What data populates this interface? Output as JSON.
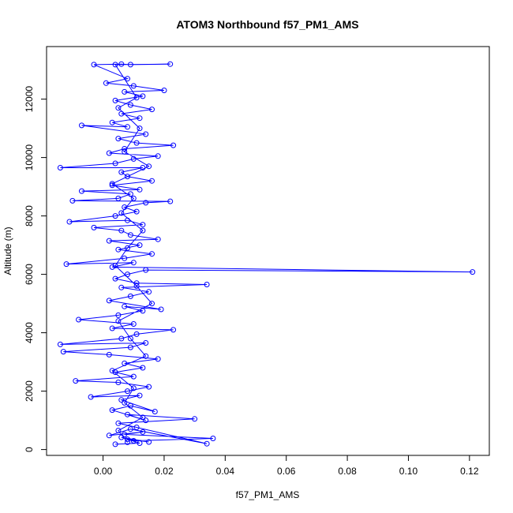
{
  "chart_data": {
    "type": "line",
    "title": "ATOM3 Northbound f57_PM1_AMS",
    "xlabel": "f57_PM1_AMS",
    "ylabel": "Altitude (m)",
    "xlim": [
      -0.0185,
      0.1265
    ],
    "ylim": [
      -200,
      13800
    ],
    "xticks": [
      0.0,
      0.02,
      0.04,
      0.06,
      0.08,
      0.1,
      0.12
    ],
    "xtick_labels": [
      "0.00",
      "0.02",
      "0.04",
      "0.06",
      "0.08",
      "0.10",
      "0.12"
    ],
    "yticks": [
      0,
      2000,
      4000,
      6000,
      8000,
      10000,
      12000
    ],
    "ytick_labels": [
      "0",
      "2000",
      "4000",
      "6000",
      "8000",
      "10000",
      "12000"
    ],
    "series_color": "#0000ff",
    "grid": false,
    "legend": "none",
    "series": [
      {
        "points": [
          [
            0.004,
            180
          ],
          [
            0.012,
            220
          ],
          [
            0.008,
            350
          ],
          [
            0.015,
            260
          ],
          [
            0.006,
            420
          ],
          [
            0.01,
            300
          ],
          [
            0.036,
            380
          ],
          [
            0.007,
            520
          ],
          [
            0.013,
            600
          ],
          [
            0.002,
            480
          ],
          [
            0.009,
            700
          ],
          [
            0.034,
            200
          ],
          [
            0.011,
            760
          ],
          [
            0.005,
            900
          ],
          [
            0.03,
            1050
          ],
          [
            0.008,
            1200
          ],
          [
            0.014,
            1000
          ],
          [
            0.003,
            1350
          ],
          [
            0.009,
            1500
          ],
          [
            0.017,
            1300
          ],
          [
            0.006,
            1700
          ],
          [
            0.012,
            1850
          ],
          [
            -0.004,
            1800
          ],
          [
            0.008,
            2000
          ],
          [
            0.015,
            2150
          ],
          [
            0.005,
            2300
          ],
          [
            -0.009,
            2350
          ],
          [
            0.01,
            2500
          ],
          [
            0.004,
            2650
          ],
          [
            0.013,
            2800
          ],
          [
            0.007,
            2950
          ],
          [
            0.018,
            3100
          ],
          [
            0.002,
            3250
          ],
          [
            -0.013,
            3350
          ],
          [
            0.009,
            3500
          ],
          [
            0.014,
            3650
          ],
          [
            -0.014,
            3600
          ],
          [
            0.006,
            3800
          ],
          [
            0.011,
            3950
          ],
          [
            0.023,
            4100
          ],
          [
            0.003,
            4150
          ],
          [
            0.01,
            4300
          ],
          [
            -0.008,
            4450
          ],
          [
            0.005,
            4600
          ],
          [
            0.013,
            4750
          ],
          [
            0.007,
            4900
          ],
          [
            0.019,
            4800
          ],
          [
            0.002,
            5100
          ],
          [
            0.009,
            5250
          ],
          [
            0.015,
            5400
          ],
          [
            0.006,
            5550
          ],
          [
            0.034,
            5650
          ],
          [
            0.011,
            5700
          ],
          [
            0.004,
            5850
          ],
          [
            0.008,
            6000
          ],
          [
            0.014,
            6150
          ],
          [
            0.121,
            6080
          ],
          [
            0.003,
            6250
          ],
          [
            0.01,
            6400
          ],
          [
            -0.012,
            6350
          ],
          [
            0.007,
            6550
          ],
          [
            0.016,
            6700
          ],
          [
            0.005,
            6850
          ],
          [
            0.012,
            7000
          ],
          [
            0.002,
            7150
          ],
          [
            0.018,
            7200
          ],
          [
            0.009,
            7350
          ],
          [
            0.006,
            7500
          ],
          [
            -0.003,
            7600
          ],
          [
            0.013,
            7700
          ],
          [
            0.008,
            7850
          ],
          [
            -0.011,
            7800
          ],
          [
            0.004,
            8000
          ],
          [
            0.011,
            8150
          ],
          [
            0.007,
            8300
          ],
          [
            0.014,
            8450
          ],
          [
            0.022,
            8500
          ],
          [
            -0.01,
            8520
          ],
          [
            0.005,
            8600
          ],
          [
            0.009,
            8750
          ],
          [
            -0.007,
            8850
          ],
          [
            0.012,
            8900
          ],
          [
            0.003,
            9050
          ],
          [
            0.016,
            9200
          ],
          [
            0.008,
            9350
          ],
          [
            0.006,
            9500
          ],
          [
            0.013,
            9650
          ],
          [
            -0.014,
            9650
          ],
          [
            0.004,
            9800
          ],
          [
            0.01,
            9950
          ],
          [
            0.018,
            10050
          ],
          [
            0.002,
            10150
          ],
          [
            0.007,
            10300
          ],
          [
            0.023,
            10420
          ],
          [
            0.011,
            10500
          ],
          [
            0.005,
            10650
          ],
          [
            0.014,
            10800
          ],
          [
            -0.007,
            11100
          ],
          [
            0.008,
            11050
          ],
          [
            0.003,
            11200
          ],
          [
            0.012,
            11350
          ],
          [
            0.006,
            11500
          ],
          [
            0.016,
            11650
          ],
          [
            0.009,
            11800
          ],
          [
            0.004,
            11950
          ],
          [
            0.013,
            12100
          ],
          [
            0.007,
            12250
          ],
          [
            0.02,
            12300
          ],
          [
            0.01,
            12450
          ],
          [
            0.001,
            12550
          ],
          [
            0.008,
            12700
          ],
          [
            -0.003,
            13180
          ],
          [
            0.006,
            13200
          ],
          [
            0.009,
            13180
          ],
          [
            0.022,
            13200
          ],
          [
            0.004,
            13180
          ],
          [
            0.011,
            12050
          ],
          [
            0.005,
            11700
          ],
          [
            0.012,
            11000
          ],
          [
            0.007,
            10200
          ],
          [
            0.015,
            9700
          ],
          [
            0.003,
            9100
          ],
          [
            0.01,
            8600
          ],
          [
            0.006,
            8100
          ],
          [
            0.013,
            7500
          ],
          [
            0.008,
            6900
          ],
          [
            0.004,
            6300
          ],
          [
            0.011,
            5600
          ],
          [
            0.016,
            5000
          ],
          [
            0.005,
            4400
          ],
          [
            0.009,
            3800
          ],
          [
            0.014,
            3200
          ],
          [
            0.003,
            2700
          ],
          [
            0.01,
            2100
          ],
          [
            0.007,
            1600
          ],
          [
            0.013,
            1100
          ],
          [
            0.005,
            650
          ],
          [
            0.008,
            250
          ]
        ]
      }
    ]
  }
}
